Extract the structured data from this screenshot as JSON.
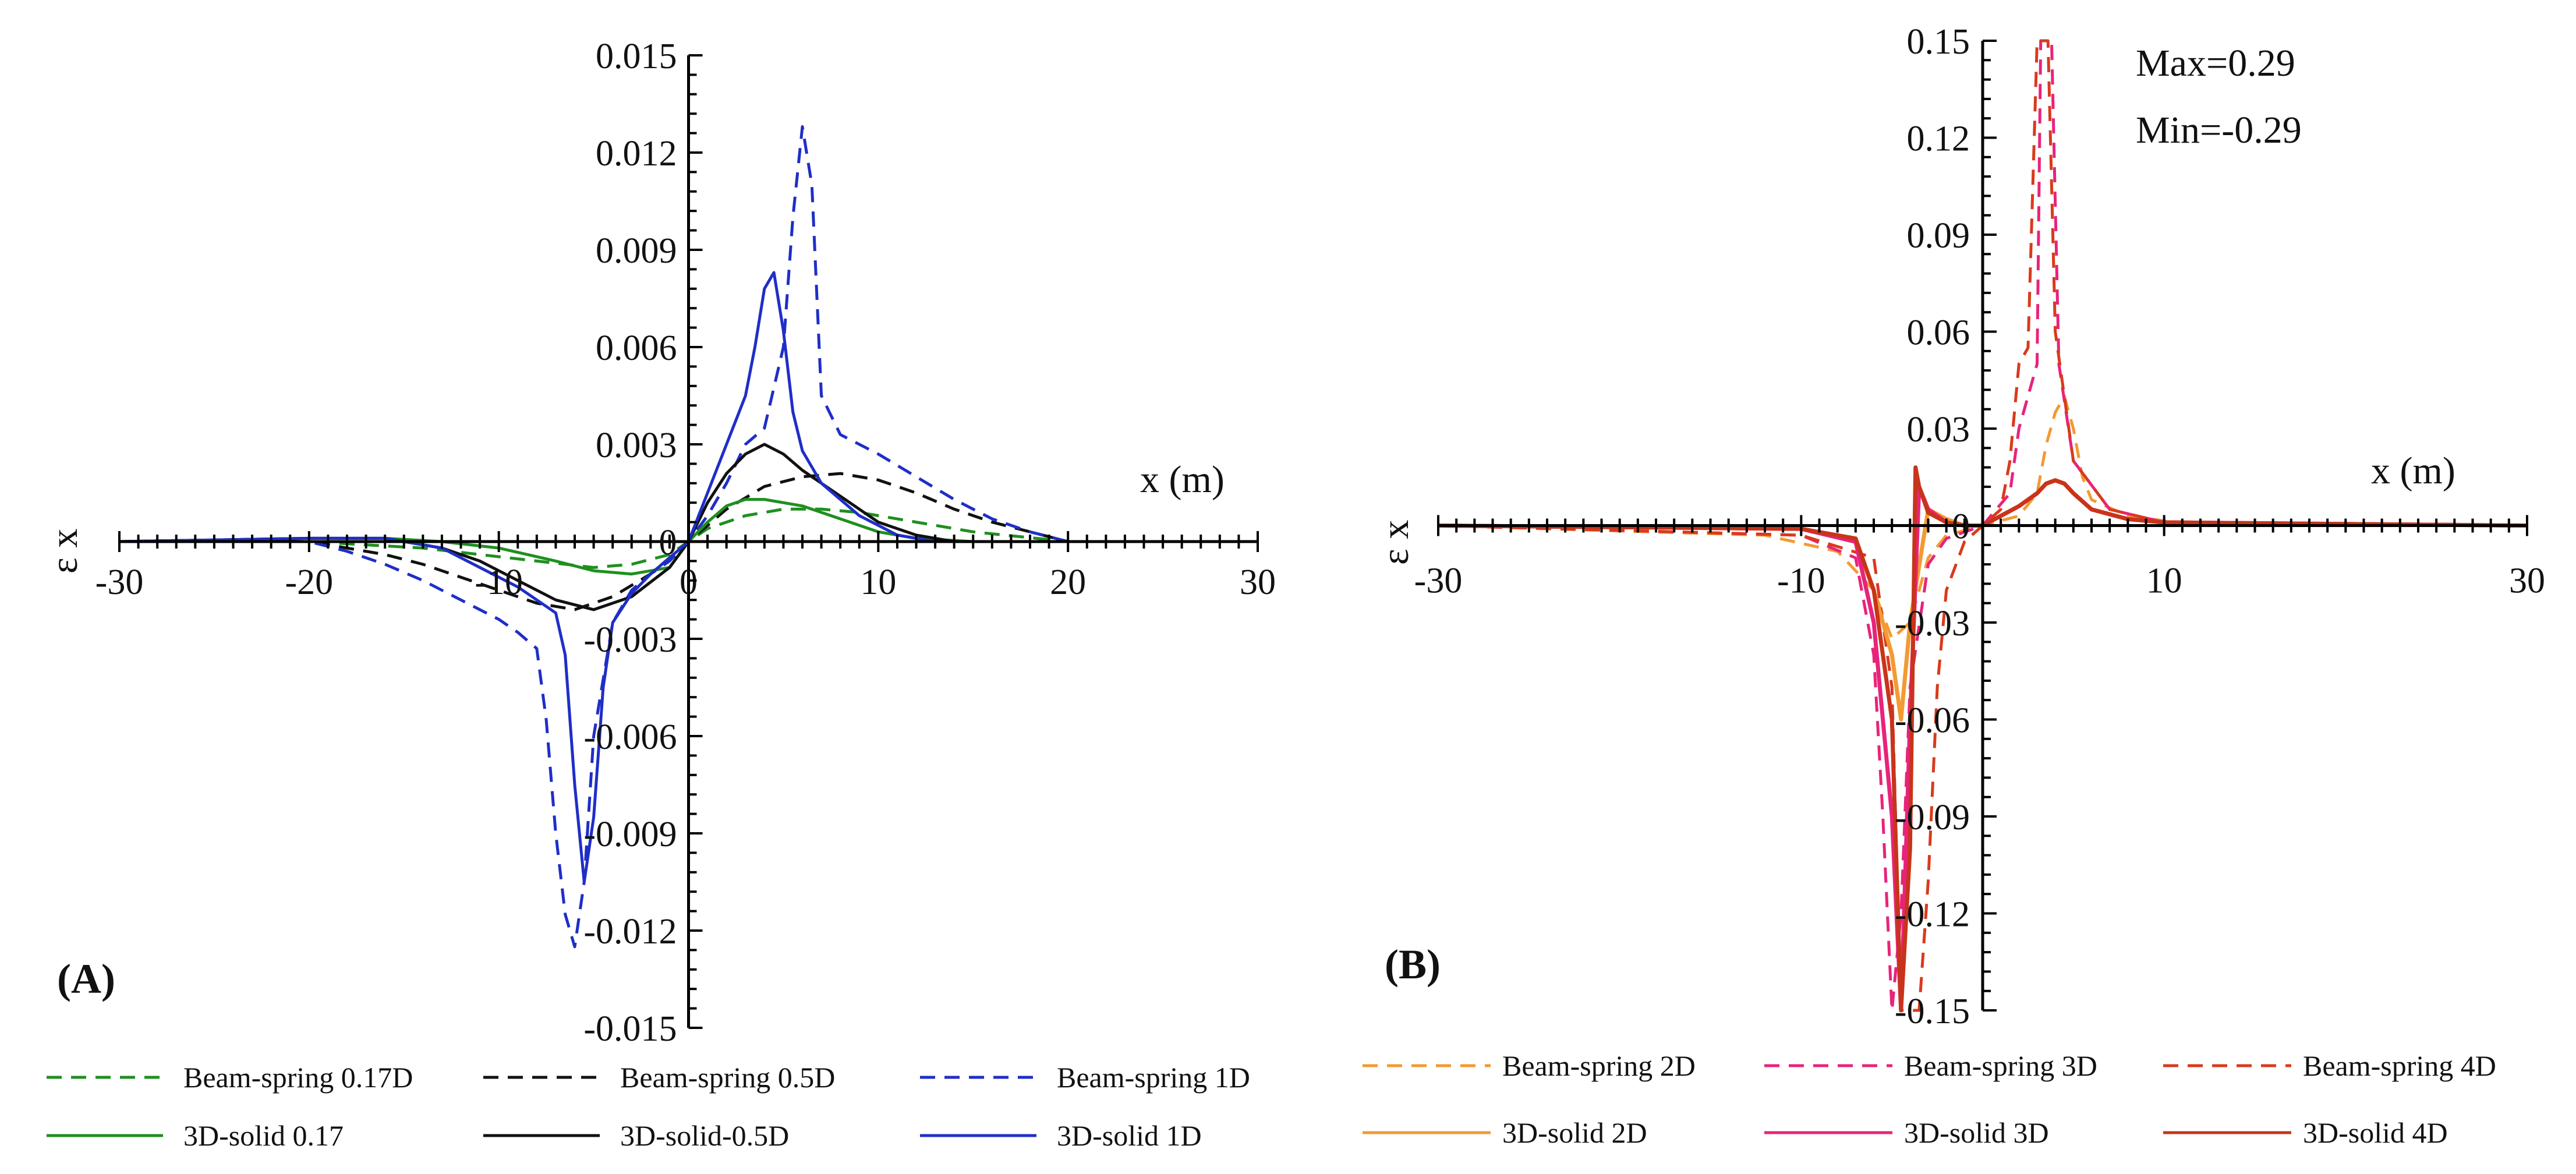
{
  "chart_data": [
    {
      "type": "line",
      "panel": "(A)",
      "xlabel": "x (m)",
      "ylabel": "ε x",
      "xlim": [
        -30,
        30
      ],
      "ylim": [
        -0.015,
        0.015
      ],
      "xticks": [
        -30,
        -20,
        -10,
        0,
        10,
        20,
        30
      ],
      "xtick_labels": [
        "-30",
        "-20",
        "-10",
        "0",
        "10",
        "20",
        "30"
      ],
      "yticks": [
        0.015,
        0.012,
        0.009,
        0.006,
        0.003,
        0,
        -0.003,
        -0.006,
        -0.009,
        -0.012,
        -0.015
      ],
      "ytick_labels": [
        "0.015",
        "0.012",
        "0.009",
        "0.006",
        "0.003",
        "0",
        "-0.003",
        "-0.006",
        "-0.009",
        "-0.012",
        "-0.015"
      ],
      "grid": false,
      "legend_position": "bottom",
      "series": [
        {
          "name": "Beam-spring 0.17D",
          "color": "#1f8f1f",
          "dash": "dashed",
          "x": [
            -30,
            -20,
            -17,
            -14,
            -11,
            -8,
            -5,
            -3,
            -1,
            0,
            1,
            3,
            5,
            7,
            9,
            12,
            15,
            20,
            30
          ],
          "y": [
            0,
            0,
            -0.0001,
            -0.0002,
            -0.0004,
            -0.0006,
            -0.0008,
            -0.0007,
            -0.0004,
            0,
            0.0004,
            0.0008,
            0.001,
            0.001,
            0.0009,
            0.0006,
            0.0003,
            0,
            0
          ]
        },
        {
          "name": "Beam-spring 0.5D",
          "color": "#111111",
          "dash": "dashed",
          "x": [
            -30,
            -20,
            -18,
            -16,
            -14,
            -12,
            -10,
            -8,
            -6,
            -4,
            -2,
            0,
            2,
            4,
            6,
            8,
            10,
            12,
            14,
            16,
            18,
            20,
            30
          ],
          "y": [
            0,
            0,
            -0.0002,
            -0.0004,
            -0.0007,
            -0.0011,
            -0.0015,
            -0.0019,
            -0.0021,
            -0.0017,
            -0.001,
            0,
            0.001,
            0.0017,
            0.002,
            0.0021,
            0.0019,
            0.0015,
            0.001,
            0.0006,
            0.0003,
            0,
            0
          ]
        },
        {
          "name": "Beam-spring 1D",
          "color": "#1f2ec8",
          "dash": "dashed",
          "x": [
            -30,
            -20,
            -18,
            -16,
            -14,
            -12,
            -10,
            -9,
            -8,
            -7.5,
            -7,
            -6.5,
            -6,
            -5.5,
            -5,
            -4,
            -3,
            -2,
            -1,
            0,
            1,
            2,
            3,
            4,
            5,
            5.5,
            6,
            6.5,
            7,
            8,
            10,
            12,
            14,
            16,
            18,
            20,
            30
          ],
          "y": [
            0,
            0,
            -0.0003,
            -0.0007,
            -0.0012,
            -0.0018,
            -0.0024,
            -0.0028,
            -0.0033,
            -0.0055,
            -0.009,
            -0.0115,
            -0.0125,
            -0.0105,
            -0.006,
            -0.0025,
            -0.0015,
            -0.001,
            -0.0006,
            0,
            0.0008,
            0.0018,
            0.003,
            0.0035,
            0.006,
            0.01,
            0.0128,
            0.011,
            0.0045,
            0.0033,
            0.0027,
            0.002,
            0.0013,
            0.0007,
            0.0003,
            0,
            0
          ]
        },
        {
          "name": "3D-solid 0.17",
          "color": "#1f8f1f",
          "dash": "solid",
          "x": [
            -30,
            -20,
            -16,
            -13,
            -10,
            -7,
            -5,
            -3,
            -1,
            0,
            1,
            2,
            3,
            4,
            6,
            8,
            10,
            12,
            15,
            30
          ],
          "y": [
            0,
            0.0001,
            0.0001,
            0,
            -0.0002,
            -0.0006,
            -0.0009,
            -0.001,
            -0.0008,
            0,
            0.0006,
            0.0011,
            0.0013,
            0.0013,
            0.0011,
            0.0007,
            0.0003,
            0.0001,
            0,
            0
          ]
        },
        {
          "name": "3D-solid-0.5D",
          "color": "#111111",
          "dash": "solid",
          "x": [
            -30,
            -20,
            -16,
            -13,
            -11,
            -9,
            -7,
            -5,
            -3,
            -1,
            0,
            1,
            2,
            3,
            4,
            5,
            6,
            8,
            10,
            12,
            14,
            30
          ],
          "y": [
            0,
            0.0001,
            0.0001,
            -0.0002,
            -0.0006,
            -0.0012,
            -0.0018,
            -0.0021,
            -0.0017,
            -0.0008,
            0,
            0.0012,
            0.0021,
            0.0027,
            0.003,
            0.0027,
            0.0022,
            0.0014,
            0.0006,
            0.0002,
            0,
            0
          ]
        },
        {
          "name": "3D-solid 1D",
          "color": "#1f2ec8",
          "dash": "solid",
          "x": [
            -30,
            -20,
            -16,
            -13,
            -11,
            -9,
            -7,
            -6.5,
            -6,
            -5.5,
            -5,
            -4.5,
            -4,
            -3,
            -2,
            -1,
            0,
            1,
            2,
            3,
            3.5,
            4,
            4.5,
            5,
            5.5,
            6,
            7,
            9,
            11,
            13,
            30
          ],
          "y": [
            0,
            0.0001,
            0.0001,
            -0.0002,
            -0.0008,
            -0.0014,
            -0.0022,
            -0.0035,
            -0.0075,
            -0.0105,
            -0.0085,
            -0.0045,
            -0.0025,
            -0.0016,
            -0.001,
            -0.0005,
            0,
            0.0015,
            0.003,
            0.0045,
            0.006,
            0.0078,
            0.0083,
            0.0065,
            0.004,
            0.0028,
            0.0018,
            0.0008,
            0.0002,
            0,
            0
          ]
        }
      ]
    },
    {
      "type": "line",
      "panel": "(B)",
      "xlabel": "x (m)",
      "ylabel": "ε x",
      "xlim": [
        -30,
        30
      ],
      "ylim": [
        -0.15,
        0.15
      ],
      "xticks": [
        -30,
        -10,
        10,
        30
      ],
      "xtick_labels": [
        "-30",
        "-10",
        "10",
        "30"
      ],
      "yticks": [
        0.15,
        0.12,
        0.09,
        0.06,
        0.03,
        0,
        -0.03,
        -0.06,
        -0.09,
        -0.12,
        -0.15
      ],
      "ytick_labels": [
        "0.15",
        "0.12",
        "0.09",
        "0.06",
        "0.03",
        "0",
        "-0.03",
        "-0.06",
        "-0.09",
        "-0.12",
        "-0.15"
      ],
      "annotations": [
        "Max=0.29",
        "Min=-0.29"
      ],
      "grid": false,
      "legend_position": "bottom",
      "series": [
        {
          "name": "Beam-spring 2D",
          "color": "#f39a32",
          "dash": "dashed",
          "x": [
            -30,
            -12,
            -8,
            -6,
            -5,
            -4,
            -3,
            -2,
            0,
            2,
            3,
            3.5,
            4,
            4.5,
            5,
            5.5,
            6,
            8,
            12,
            30
          ],
          "y": [
            0,
            -0.003,
            -0.008,
            -0.02,
            -0.035,
            -0.03,
            -0.01,
            -0.003,
            0,
            0.003,
            0.01,
            0.025,
            0.035,
            0.04,
            0.03,
            0.015,
            0.008,
            0.003,
            0,
            0
          ]
        },
        {
          "name": "Beam-spring 3D",
          "color": "#e8237a",
          "dash": "dashed",
          "x": [
            -30,
            -10,
            -7,
            -6,
            -5.5,
            -5,
            -4.5,
            -4,
            -3,
            -2,
            0,
            1.5,
            2,
            3,
            3.2,
            3.5,
            3.8,
            4.2,
            5,
            7,
            10,
            30
          ],
          "y": [
            0,
            -0.003,
            -0.01,
            -0.04,
            -0.09,
            -0.15,
            -0.12,
            -0.05,
            -0.012,
            -0.004,
            0,
            0.01,
            0.03,
            0.05,
            0.15,
            0.15,
            0.15,
            0.05,
            0.02,
            0.005,
            0.001,
            0
          ]
        },
        {
          "name": "Beam-spring 4D",
          "color": "#d93a1c",
          "dash": "dashed",
          "x": [
            -30,
            -10,
            -6,
            -5,
            -4.5,
            -4,
            -3.5,
            -3,
            -2.5,
            -2,
            -1,
            0,
            1,
            1.5,
            2,
            2.5,
            3,
            3.3,
            3.6,
            4,
            5,
            7,
            10,
            30
          ],
          "y": [
            0,
            -0.003,
            -0.01,
            -0.05,
            -0.15,
            -0.15,
            -0.15,
            -0.11,
            -0.05,
            -0.02,
            -0.005,
            0,
            0.005,
            0.02,
            0.05,
            0.055,
            0.15,
            0.15,
            0.15,
            0.06,
            0.02,
            0.005,
            0.001,
            0
          ]
        },
        {
          "name": "3D-solid 2D",
          "color": "#f39a32",
          "dash": "solid",
          "x": [
            -30,
            -10,
            -7,
            -6,
            -5,
            -4.5,
            -4,
            -3,
            -2,
            -1,
            0,
            1,
            2,
            3,
            3.5,
            4,
            4.5,
            5,
            6,
            8,
            10,
            30
          ],
          "y": [
            0,
            -0.001,
            -0.005,
            -0.02,
            -0.04,
            -0.06,
            -0.03,
            0.005,
            0.002,
            0,
            0,
            0.003,
            0.006,
            0.01,
            0.013,
            0.014,
            0.013,
            0.01,
            0.005,
            0.002,
            0.001,
            0
          ]
        },
        {
          "name": "3D-solid 3D",
          "color": "#e8237a",
          "dash": "solid",
          "x": [
            -30,
            -10,
            -7,
            -6,
            -5,
            -4.5,
            -4,
            -3.5,
            -3,
            -2,
            -1,
            0,
            1,
            2,
            3,
            3.5,
            4,
            4.5,
            5,
            6,
            8,
            10,
            30
          ],
          "y": [
            0,
            -0.001,
            -0.005,
            -0.03,
            -0.09,
            -0.15,
            -0.06,
            0.012,
            0.005,
            0.001,
            0,
            0,
            0.003,
            0.006,
            0.01,
            0.013,
            0.014,
            0.013,
            0.01,
            0.005,
            0.002,
            0.001,
            0
          ]
        },
        {
          "name": "3D-solid 4D",
          "color": "#c8341a",
          "dash": "solid",
          "x": [
            -30,
            -10,
            -7,
            -6,
            -5,
            -4.5,
            -4,
            -3.7,
            -3.5,
            -3,
            -2,
            -1,
            0,
            1,
            2,
            3,
            3.5,
            4,
            4.5,
            5,
            6,
            8,
            10,
            30
          ],
          "y": [
            0,
            -0.001,
            -0.004,
            -0.02,
            -0.06,
            -0.15,
            -0.1,
            0.018,
            0.012,
            0.004,
            0.001,
            0,
            0,
            0.003,
            0.006,
            0.01,
            0.013,
            0.014,
            0.013,
            0.01,
            0.005,
            0.002,
            0.001,
            0
          ]
        }
      ]
    }
  ]
}
